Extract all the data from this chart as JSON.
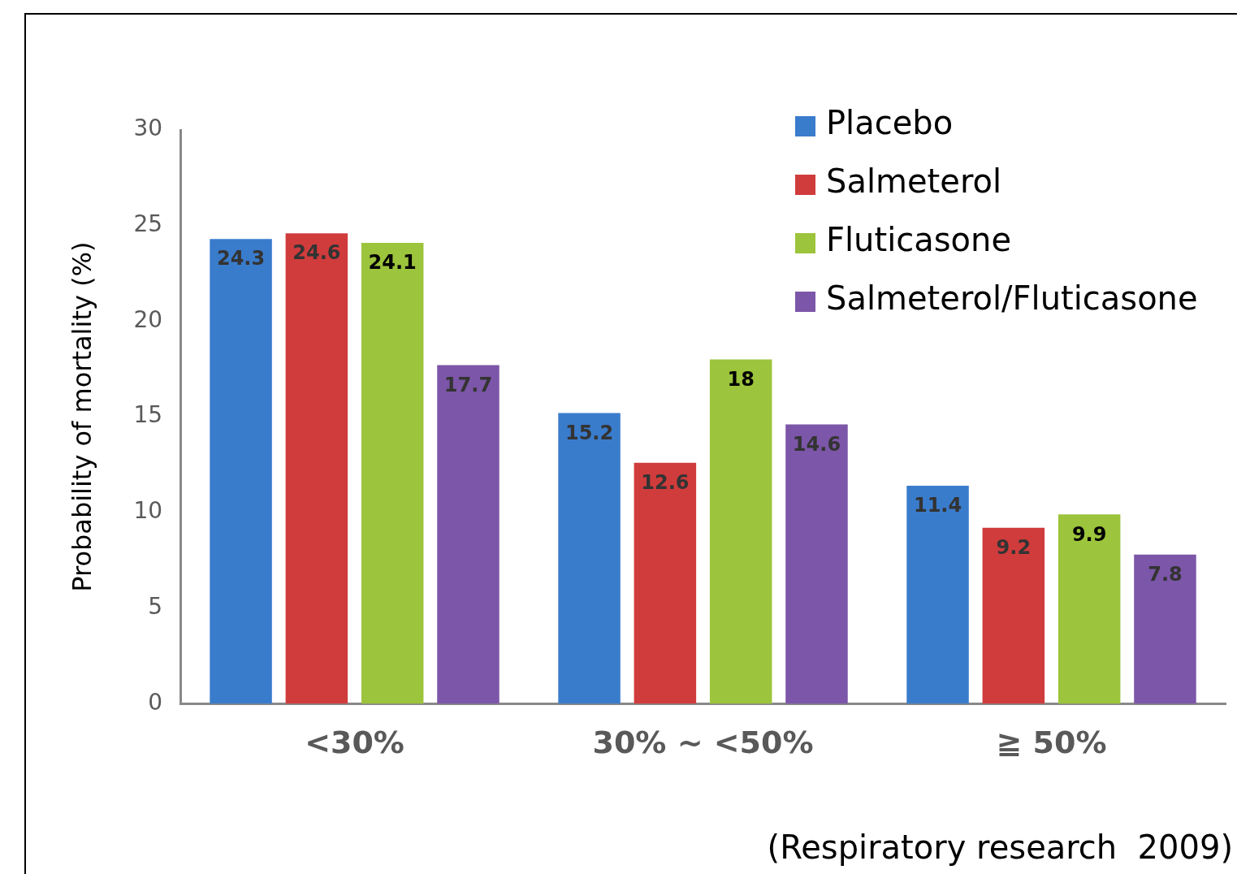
{
  "chart_data": {
    "type": "bar",
    "ylabel": "Probability of mortality (%)",
    "categories": [
      "<30%",
      "30% ~ <50%",
      "≧ 50%"
    ],
    "series": [
      {
        "name": "Placebo",
        "color": "#3a7ccc",
        "values": [
          24.3,
          15.2,
          11.4
        ]
      },
      {
        "name": "Salmeterol",
        "color": "#d03c3c",
        "values": [
          24.6,
          12.6,
          9.2
        ]
      },
      {
        "name": "Fluticasone",
        "color": "#9cc43c",
        "values": [
          24.1,
          18,
          9.9
        ]
      },
      {
        "name": "Salmeterol/Fluticasone",
        "color": "#7c56a8",
        "values": [
          17.7,
          14.6,
          7.8
        ]
      }
    ],
    "ylim": [
      0,
      30
    ],
    "yticks": [
      0,
      5,
      10,
      15,
      20,
      25,
      30
    ],
    "grid": false,
    "legend": "top right",
    "data_labels": true,
    "annotations": [
      "(Respiratory research  2009)"
    ]
  }
}
